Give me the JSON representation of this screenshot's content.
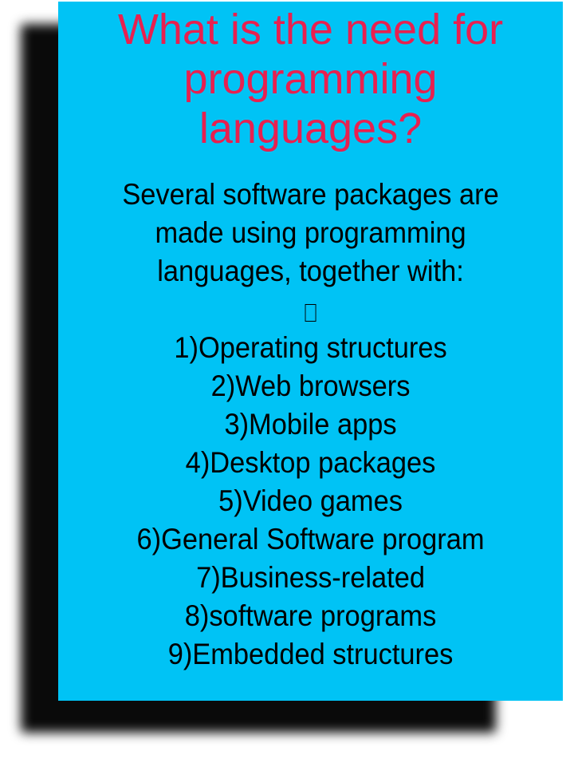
{
  "title": "What is the need for programming languages?",
  "intro_lines": [
    "Several software packages are",
    "made using programming",
    "languages, together with:"
  ],
  "placeholder_glyph_icon": "missing-glyph-icon",
  "items": [
    "1)Operating structures",
    "2)Web browsers",
    "3)Mobile apps",
    "4)Desktop packages",
    "5)Video games",
    "6)General Software program",
    "7)Business-related",
    "8)software programs",
    "9)Embedded structures"
  ],
  "colors": {
    "card_background": "#00c3f5",
    "title_text": "#e8204f",
    "body_text": "#000000",
    "shadow": "#0a0a0a"
  }
}
